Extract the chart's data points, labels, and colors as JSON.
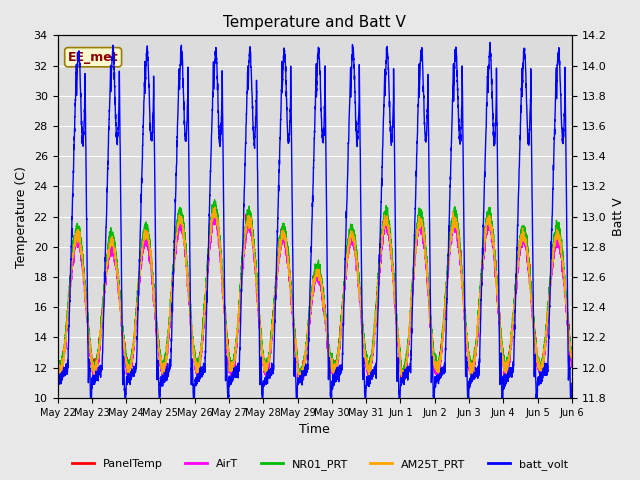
{
  "title": "Temperature and Batt V",
  "ylabel_left": "Temperature (C)",
  "ylabel_right": "Batt V",
  "xlabel": "Time",
  "ylim_left": [
    10,
    34
  ],
  "ylim_right": [
    11.8,
    14.2
  ],
  "annotation_text": "EE_met",
  "annotation_color": "#8B0000",
  "annotation_bg": "#FFFACD",
  "annotation_border": "#9B7B00",
  "xtick_labels": [
    "May 22",
    "May 23",
    "May 24",
    "May 25",
    "May 26",
    "May 27",
    "May 28",
    "May 29",
    "May 30",
    "May 31",
    "Jun 1",
    "Jun 2",
    "Jun 3",
    "Jun 4",
    "Jun 5",
    "Jun 6"
  ],
  "legend_entries": [
    "PanelTemp",
    "AirT",
    "NR01_PRT",
    "AM25T_PRT",
    "batt_volt"
  ],
  "legend_colors": [
    "#FF0000",
    "#FF00FF",
    "#00BB00",
    "#FFA500",
    "#0000FF"
  ],
  "line_width": 1.0,
  "fig_bg": "#E8E8E8",
  "plot_bg": "#DCDCDC",
  "grid_color": "#FFFFFF",
  "title_fontsize": 11,
  "tick_fontsize": 8,
  "label_fontsize": 9
}
